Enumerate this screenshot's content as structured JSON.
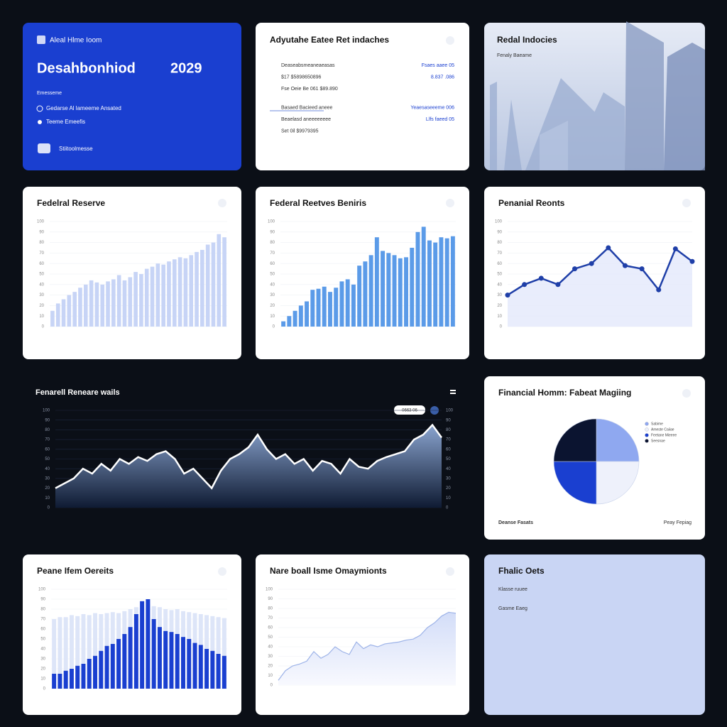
{
  "cards": {
    "hero": {
      "label": "Aleal Hlme Ioom",
      "title": "Desahbonhiod",
      "year": "2029",
      "caption": "Emesseme",
      "items": [
        "Gedarse Al lameeme Ansated",
        "Teeme Emeefis"
      ],
      "footer": "Stiitoolmesse"
    },
    "rates": {
      "title": "Adyutahe Eatee Ret indaches",
      "rows": [
        [
          "Deaseabsmeaneaeasas",
          "Fsaes aaee 05"
        ],
        [
          "$17 $5898650896",
          "8.837 .086"
        ],
        [
          "Fse Oeie Be 061 $89.890",
          ""
        ],
        [
          "Basaed Bacieed aneee",
          "Yeaesaseeeme 006"
        ],
        [
          "Beaelasd aneeeeeeee",
          "Llfs faeed 05"
        ],
        [
          "Set 0il $9979395",
          ""
        ]
      ]
    },
    "image": {
      "title": "Redal Indocies",
      "subtitle": "Fenaly Baeame"
    },
    "dark": {
      "badge": "0663 06"
    },
    "pie_footer": [
      "Deanse Fasats",
      "Peay Fepiag"
    ],
    "plain": {
      "title": "Fhalic Oets",
      "lines": [
        "Klasse ruuee",
        "Gasme Eaeg"
      ]
    }
  },
  "chart_data": [
    {
      "type": "bar",
      "title": "Fedelral Reserve",
      "color": "#c7d4f6",
      "ylim": [
        0,
        100
      ],
      "yticks": [
        0,
        10,
        20,
        30,
        40,
        50,
        60,
        70,
        80,
        90,
        100
      ],
      "values": [
        15,
        22,
        26,
        30,
        33,
        37,
        40,
        44,
        42,
        40,
        43,
        45,
        49,
        44,
        47,
        52,
        50,
        55,
        57,
        60,
        59,
        62,
        64,
        66,
        65,
        68,
        71,
        73,
        78,
        80,
        88,
        85
      ]
    },
    {
      "type": "bar",
      "title": "Federal Reetves  Beniris",
      "color": "#5b9be8",
      "ylim": [
        0,
        100
      ],
      "yticks": [
        0,
        10,
        20,
        30,
        40,
        50,
        60,
        70,
        80,
        90,
        100
      ],
      "values": [
        5,
        10,
        15,
        20,
        24,
        35,
        36,
        38,
        33,
        37,
        43,
        45,
        40,
        58,
        62,
        68,
        85,
        72,
        70,
        68,
        65,
        66,
        75,
        90,
        95,
        82,
        80,
        85,
        84,
        86
      ]
    },
    {
      "type": "line",
      "title": "Penanial Reonts",
      "color": "#1f3fa8",
      "ylim": [
        0,
        100
      ],
      "yticks": [
        0,
        10,
        20,
        30,
        40,
        50,
        60,
        70,
        80,
        90,
        100
      ],
      "values": [
        30,
        40,
        46,
        40,
        55,
        60,
        75,
        58,
        55,
        35,
        74,
        62
      ]
    },
    {
      "type": "area",
      "title": "Fenarell Reneare wails",
      "color": "#ffffff",
      "ylim": [
        0,
        100
      ],
      "yticks": [
        0,
        10,
        20,
        30,
        40,
        50,
        60,
        70,
        80,
        90,
        100
      ],
      "values": [
        20,
        25,
        30,
        40,
        35,
        45,
        38,
        50,
        45,
        52,
        48,
        55,
        58,
        50,
        35,
        40,
        30,
        20,
        38,
        50,
        55,
        62,
        75,
        60,
        50,
        55,
        45,
        50,
        38,
        48,
        45,
        35,
        50,
        42,
        40,
        48,
        52,
        55,
        58,
        70,
        75,
        85,
        72
      ]
    },
    {
      "type": "pie",
      "title": "Financial Homm: Fabeat Magiing",
      "series": [
        {
          "name": "Sabime",
          "color": "#8fa8f0",
          "values": [
            25
          ]
        },
        {
          "name": "Ameste Caiiae",
          "color": "#eef1fb",
          "values": [
            25
          ]
        },
        {
          "name": "Feetane Mieeee",
          "color": "#1a3fd0",
          "values": [
            25
          ]
        },
        {
          "name": "Seesnae",
          "color": "#0b1430",
          "values": [
            25
          ]
        }
      ]
    },
    {
      "type": "groupbar",
      "title": "Peane Ifem Oereits",
      "ylim": [
        0,
        100
      ],
      "yticks": [
        0,
        10,
        20,
        30,
        40,
        50,
        60,
        70,
        80,
        90,
        100
      ],
      "series": [
        {
          "color": "#dde5f8",
          "values": [
            70,
            72,
            72,
            74,
            73,
            75,
            74,
            76,
            75,
            76,
            77,
            76,
            78,
            80,
            82,
            84,
            85,
            83,
            82,
            80,
            79,
            80,
            78,
            77,
            76,
            75,
            74,
            73,
            72,
            71
          ]
        },
        {
          "color": "#1a3fd0",
          "values": [
            15,
            15,
            18,
            20,
            23,
            25,
            30,
            33,
            38,
            43,
            45,
            50,
            55,
            62,
            75,
            88,
            90,
            70,
            62,
            58,
            57,
            55,
            52,
            50,
            46,
            44,
            40,
            38,
            35,
            33
          ]
        }
      ]
    },
    {
      "type": "area",
      "title": "Nare boall Isme Omaymionts",
      "color": "#9db3e8",
      "ylim": [
        0,
        100
      ],
      "yticks": [
        0,
        10,
        20,
        30,
        40,
        50,
        60,
        70,
        80,
        90,
        100
      ],
      "values": [
        5,
        15,
        20,
        22,
        25,
        35,
        28,
        32,
        40,
        35,
        32,
        45,
        38,
        42,
        40,
        43,
        44,
        45,
        47,
        48,
        52,
        60,
        65,
        72,
        76,
        75
      ]
    }
  ]
}
